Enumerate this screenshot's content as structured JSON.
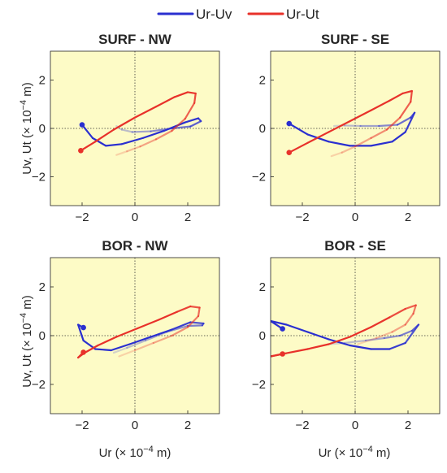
{
  "legend": [
    {
      "label": "Ur-Uv",
      "color": "#2a2fd0"
    },
    {
      "label": "Ur-Ut",
      "color": "#e8312a"
    }
  ],
  "axis_labels": {
    "xlabel_prefix": "Ur (",
    "xlabel_suffix": " m)",
    "ylabel_prefix": "Uv, Ut (",
    "ylabel_suffix": " m)",
    "scale_base": "× 10",
    "scale_exp": "−4"
  },
  "plot_background": "#fdfbc6",
  "chart_data": [
    {
      "type": "line",
      "title": "SURF - NW",
      "xlim": [
        -3.2,
        3.2
      ],
      "ylim": [
        -3.2,
        3.2
      ],
      "xticks": [
        -2,
        0,
        2
      ],
      "yticks": [
        -2,
        0,
        2
      ],
      "series": [
        {
          "name": "Ur-Uv",
          "x": [
            -2.0,
            -1.6,
            -1.1,
            -0.5,
            0.3,
            1.1,
            1.9,
            2.4,
            2.5,
            2.1,
            1.4,
            0.6,
            -0.1,
            -0.5,
            -0.7
          ],
          "y": [
            0.15,
            -0.4,
            -0.72,
            -0.65,
            -0.4,
            -0.1,
            0.25,
            0.42,
            0.3,
            0.08,
            0.0,
            -0.12,
            -0.15,
            -0.05,
            0.1
          ]
        },
        {
          "name": "Ur-Ut",
          "x": [
            -2.05,
            -1.5,
            -0.8,
            0.0,
            0.8,
            1.5,
            2.0,
            2.3,
            2.25,
            1.9,
            1.4,
            0.8,
            0.2,
            -0.3,
            -0.7
          ],
          "y": [
            -0.92,
            -0.55,
            -0.05,
            0.45,
            0.9,
            1.3,
            1.5,
            1.45,
            1.05,
            0.4,
            -0.1,
            -0.45,
            -0.75,
            -0.95,
            -1.1
          ]
        }
      ]
    },
    {
      "type": "line",
      "title": "SURF - SE",
      "xlim": [
        -3.2,
        3.2
      ],
      "ylim": [
        -3.2,
        3.2
      ],
      "xticks": [
        -2,
        0,
        2
      ],
      "yticks": [
        -2,
        0,
        2
      ],
      "series": [
        {
          "name": "Ur-Uv",
          "x": [
            -2.5,
            -1.8,
            -1.0,
            -0.2,
            0.6,
            1.4,
            1.9,
            2.25,
            2.1,
            1.6,
            0.9,
            0.2,
            -0.4,
            -0.8
          ],
          "y": [
            0.2,
            -0.25,
            -0.55,
            -0.72,
            -0.72,
            -0.55,
            -0.15,
            0.65,
            0.45,
            0.15,
            0.1,
            0.1,
            0.12,
            0.1
          ]
        },
        {
          "name": "Ur-Ut",
          "x": [
            -2.5,
            -1.8,
            -1.0,
            -0.2,
            0.6,
            1.3,
            1.8,
            2.15,
            2.1,
            1.7,
            1.2,
            0.6,
            0.0,
            -0.5,
            -0.9
          ],
          "y": [
            -1.0,
            -0.6,
            -0.15,
            0.3,
            0.75,
            1.15,
            1.45,
            1.55,
            1.1,
            0.45,
            -0.05,
            -0.4,
            -0.75,
            -1.0,
            -1.15
          ]
        }
      ]
    },
    {
      "type": "line",
      "title": "BOR - NW",
      "xlim": [
        -3.2,
        3.2
      ],
      "ylim": [
        -3.2,
        3.2
      ],
      "xticks": [
        -2,
        0,
        2
      ],
      "yticks": [
        -2,
        0,
        2
      ],
      "series": [
        {
          "name": "Ur-Uv",
          "x": [
            -1.95,
            -2.15,
            -1.95,
            -1.5,
            -0.9,
            -0.2,
            0.6,
            1.4,
            2.1,
            2.6,
            2.55,
            2.0,
            1.2,
            0.4,
            -0.3,
            -0.8
          ],
          "y": [
            0.33,
            0.45,
            -0.2,
            -0.55,
            -0.6,
            -0.35,
            -0.05,
            0.25,
            0.55,
            0.5,
            0.42,
            0.4,
            0.15,
            -0.2,
            -0.5,
            -0.7
          ]
        },
        {
          "name": "Ur-Ut",
          "x": [
            -1.95,
            -2.15,
            -1.9,
            -1.4,
            -0.7,
            0.1,
            0.9,
            1.6,
            2.1,
            2.45,
            2.4,
            2.0,
            1.4,
            0.7,
            0.0,
            -0.6
          ],
          "y": [
            -0.68,
            -0.9,
            -0.7,
            -0.4,
            -0.05,
            0.3,
            0.65,
            0.98,
            1.2,
            1.15,
            0.8,
            0.35,
            0.0,
            -0.3,
            -0.6,
            -0.85
          ]
        }
      ]
    },
    {
      "type": "line",
      "title": "BOR - SE",
      "xlim": [
        -3.2,
        3.2
      ],
      "ylim": [
        -3.2,
        3.2
      ],
      "xticks": [
        -2,
        0,
        2
      ],
      "yticks": [
        -2,
        0,
        2
      ],
      "series": [
        {
          "name": "Ur-Uv",
          "x": [
            -2.75,
            -3.2,
            -2.6,
            -1.8,
            -1.0,
            -0.2,
            0.6,
            1.3,
            1.9,
            2.4,
            2.15,
            1.7,
            1.1,
            0.4,
            -0.4,
            -1.0
          ],
          "y": [
            0.28,
            0.6,
            0.45,
            0.15,
            -0.15,
            -0.4,
            -0.55,
            -0.55,
            -0.3,
            0.45,
            0.2,
            0.0,
            -0.1,
            -0.2,
            -0.3,
            -0.35
          ]
        },
        {
          "name": "Ur-Ut",
          "x": [
            -2.75,
            -3.2,
            -2.6,
            -1.8,
            -1.0,
            -0.2,
            0.6,
            1.3,
            1.9,
            2.3,
            2.2,
            1.9,
            1.4,
            0.8,
            0.1
          ],
          "y": [
            -0.75,
            -0.85,
            -0.72,
            -0.55,
            -0.35,
            -0.05,
            0.35,
            0.75,
            1.1,
            1.25,
            0.9,
            0.45,
            0.15,
            -0.1,
            -0.35
          ]
        }
      ]
    }
  ]
}
